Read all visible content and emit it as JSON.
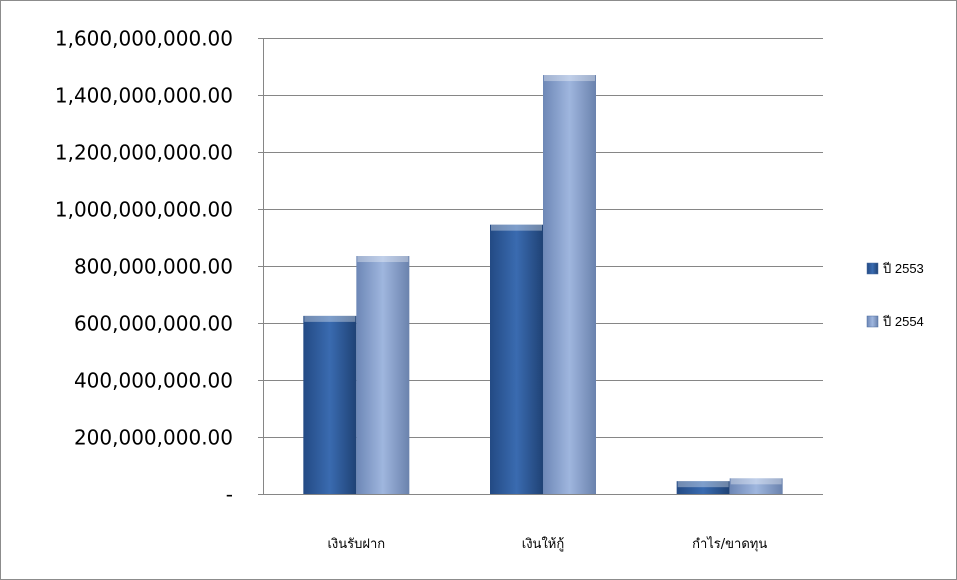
{
  "chart_data": {
    "type": "bar",
    "categories": [
      "เงินรับฝาก",
      "เงินให้กู้",
      "กำไร/ขาดทุน"
    ],
    "series": [
      {
        "name": "ปี 2553",
        "values": [
          625000000,
          945000000,
          45000000
        ],
        "color": "#2f5d9c"
      },
      {
        "name": "ปี 2554",
        "values": [
          835000000,
          1470000000,
          55000000
        ],
        "color": "#8ea7d3"
      }
    ],
    "ylim": [
      0,
      1600000000
    ],
    "y_ticks": [
      0,
      200000000,
      400000000,
      600000000,
      800000000,
      1000000000,
      1200000000,
      1400000000,
      1600000000
    ],
    "y_tick_labels": [
      "-",
      "200,000,000.00",
      "400,000,000.00",
      "600,000,000.00",
      "800,000,000.00",
      "1,000,000,000.00",
      "1,200,000,000.00",
      "1,400,000,000.00",
      "1,600,000,000.00"
    ],
    "grid": true,
    "legend_position": "right"
  }
}
